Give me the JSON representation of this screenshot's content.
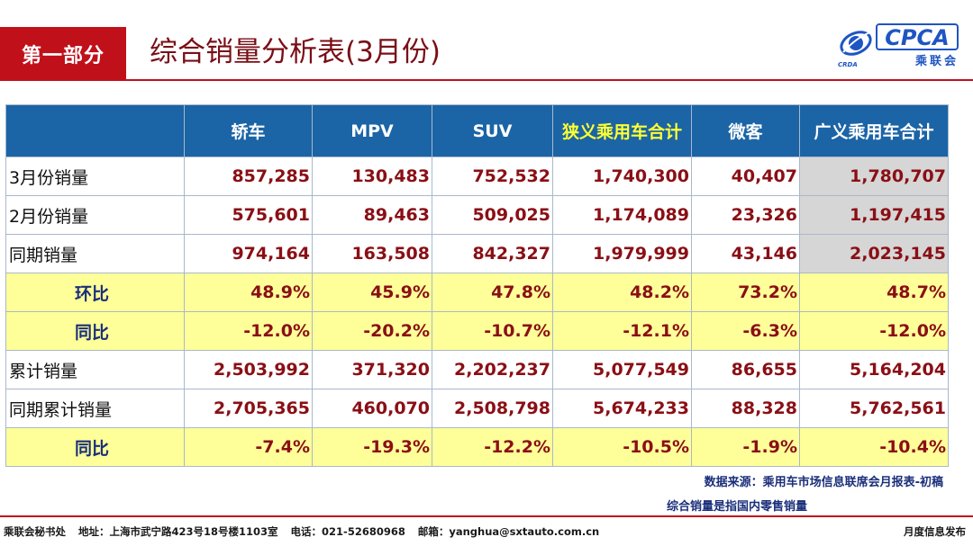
{
  "header": {
    "section_label": "第一部分",
    "title": "综合销量分析表(3月份)"
  },
  "logo": {
    "text": "CPCA",
    "cn_text": "乘联会",
    "small_text": "CRDA"
  },
  "table": {
    "columns": [
      "",
      "轿车",
      "MPV",
      "SUV",
      "狭义乘用车合计",
      "微客",
      "广义乘用车合计"
    ],
    "rows": [
      {
        "label": "3月份销量",
        "values": [
          "857,285",
          "130,483",
          "752,532",
          "1,740,300",
          "40,407",
          "1,780,707"
        ]
      },
      {
        "label": "2月份销量",
        "values": [
          "575,601",
          "89,463",
          "509,025",
          "1,174,089",
          "23,326",
          "1,197,415"
        ]
      },
      {
        "label": "同期销量",
        "values": [
          "974,164",
          "163,508",
          "842,327",
          "1,979,999",
          "43,146",
          "2,023,145"
        ]
      },
      {
        "label": "环比",
        "values": [
          "48.9%",
          "45.9%",
          "47.8%",
          "48.2%",
          "73.2%",
          "48.7%"
        ]
      },
      {
        "label": "同比",
        "values": [
          "-12.0%",
          "-20.2%",
          "-10.7%",
          "-12.1%",
          "-6.3%",
          "-12.0%"
        ]
      },
      {
        "label": "累计销量",
        "values": [
          "2,503,992",
          "371,320",
          "2,202,237",
          "5,077,549",
          "86,655",
          "5,164,204"
        ]
      },
      {
        "label": "同期累计销量",
        "values": [
          "2,705,365",
          "460,070",
          "2,508,798",
          "5,674,233",
          "88,328",
          "5,762,561"
        ]
      },
      {
        "label": "同比",
        "values": [
          "-7.4%",
          "-19.3%",
          "-12.2%",
          "-10.5%",
          "-1.9%",
          "-10.4%"
        ]
      }
    ]
  },
  "notes": {
    "source": "数据来源：乘用车市场信息联席会月报表-初稿",
    "definition": "综合销量是指国内零售销量"
  },
  "footer": {
    "org": "乘联会秘书处",
    "address": "地址：上海市武宁路423号18号楼1103室",
    "phone": "电话：021-52680968",
    "email": "邮箱：yanghua@sxtauto.com.cn",
    "right": "月度信息发布"
  },
  "colors": {
    "brand_red": "#c0101a",
    "header_blue": "#1b64a6",
    "highlight_yellow": "#ffff99",
    "value_red": "#8a0f15"
  }
}
